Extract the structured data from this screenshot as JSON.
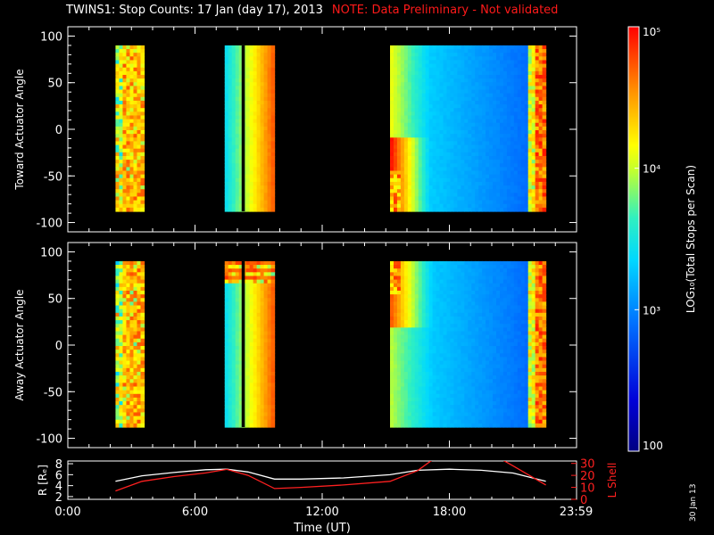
{
  "header": {
    "title": "TWINS1: Stop Counts: 17 Jan (day  17), 2013",
    "note": "NOTE: Data Preliminary - Not validated"
  },
  "footer": {
    "date_stamp": "30 Jan 13"
  },
  "colors": {
    "background": "#000000",
    "foreground": "#ffffff",
    "note": "#ff1a1a",
    "lshell": "#ff2020",
    "radius": "#ffffff"
  },
  "chart_data": [
    {
      "type": "heatmap",
      "panel": "toward",
      "ylabel": "Toward Actuator Angle",
      "xlim": [
        0,
        24
      ],
      "ylim": [
        -110,
        110
      ],
      "yticks": [
        100,
        50,
        0,
        -50,
        -100
      ],
      "data_extent_y": [
        -88,
        90
      ],
      "blocks": [
        {
          "start": 2.25,
          "end": 3.6,
          "style": "noisy"
        },
        {
          "start": 7.4,
          "end": 9.75,
          "style": "gradient",
          "gap": [
            8.2,
            8.35
          ]
        },
        {
          "start": 15.2,
          "end": 22.55,
          "style": "sweep"
        }
      ]
    },
    {
      "type": "heatmap",
      "panel": "away",
      "ylabel": "Away Actuator Angle",
      "xlim": [
        0,
        24
      ],
      "ylim": [
        -110,
        110
      ],
      "yticks": [
        100,
        50,
        0,
        -50,
        -100
      ],
      "data_extent_y": [
        -88,
        90
      ],
      "blocks": [
        {
          "start": 2.25,
          "end": 3.6,
          "style": "noisy"
        },
        {
          "start": 7.4,
          "end": 9.75,
          "style": "gradient",
          "gap": [
            8.2,
            8.35
          ]
        },
        {
          "start": 15.2,
          "end": 22.55,
          "style": "sweep"
        }
      ]
    },
    {
      "type": "colorbar",
      "label": "LOG₁₀(Total Stops per Scan)",
      "ticks": [
        "10⁵",
        "10⁴",
        "10³",
        "100"
      ],
      "tick_values": [
        100000,
        10000,
        1000,
        100
      ],
      "range": [
        100,
        100000
      ],
      "scale": "log"
    },
    {
      "type": "line",
      "panel": "orbit",
      "xlabel": "Time (UT)",
      "xticks": [
        "0:00",
        "6:00",
        "12:00",
        "18:00",
        "23:59"
      ],
      "xtick_values": [
        0,
        6,
        12,
        18,
        23.98
      ],
      "ylabel_left": "R [Rₑ]",
      "ylabel_right": "L Shell",
      "ylim_left": [
        1.5,
        8.5
      ],
      "yticks_left": [
        2,
        4,
        6,
        8
      ],
      "ylim_right": [
        0,
        32
      ],
      "yticks_right": [
        0,
        10,
        20,
        30
      ],
      "series": [
        {
          "axis": "left",
          "x": [
            2.25,
            3.5,
            5,
            6.5,
            7.5,
            8.5,
            9.75,
            11,
            13,
            15.2,
            16.5,
            18,
            19.5,
            21,
            22.55
          ],
          "y": [
            4.8,
            5.8,
            6.4,
            6.9,
            7.0,
            6.5,
            5.2,
            5.2,
            5.4,
            6.0,
            6.8,
            7.0,
            6.8,
            6.3,
            4.8
          ]
        },
        {
          "axis": "right",
          "x": [
            2.25,
            3.5,
            5,
            6.5,
            7.5,
            8.5,
            9.75,
            11,
            13,
            15.2,
            16.5,
            17.2,
            19,
            20.5,
            21,
            22.55
          ],
          "y": [
            7,
            15,
            19,
            22,
            25,
            20,
            9,
            10,
            12,
            15,
            24,
            33,
            34,
            33,
            28,
            12
          ]
        }
      ]
    }
  ]
}
